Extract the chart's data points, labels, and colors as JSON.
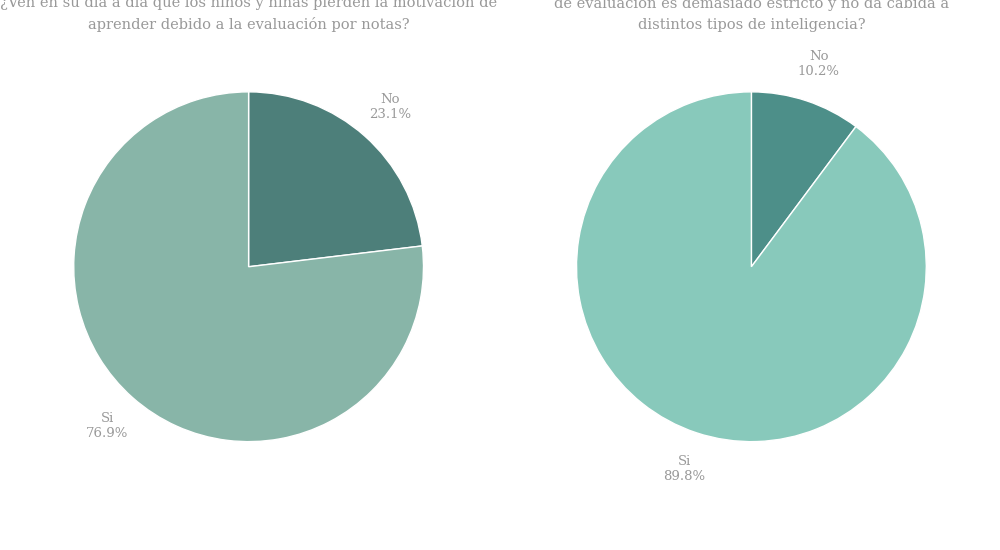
{
  "chart1": {
    "title": "¿Ven en su dia a dia que los niños y niñas pierden la motivación de\naprender debido a la evaluación por notas?",
    "labels": [
      "No",
      "Si"
    ],
    "values": [
      23.1,
      76.9
    ],
    "colors": [
      "#4d7f7a",
      "#88b5a8"
    ],
    "startangle": 90,
    "label_info": [
      {
        "label": "No",
        "pct": "23.1%",
        "ha": "left",
        "r": 1.18
      },
      {
        "label": "Si",
        "pct": "76.9%",
        "ha": "center",
        "r": 1.18
      }
    ]
  },
  "chart2": {
    "title": "¿Está el abandono escolar relacionado con que el sistema\nde evaluación es demasiado estricto y no da cabida a\ndistintos tipos de inteligencia?",
    "labels": [
      "No",
      "Si"
    ],
    "values": [
      10.2,
      89.8
    ],
    "colors": [
      "#4d8f89",
      "#88c9bb"
    ],
    "startangle": 90,
    "label_info": [
      {
        "label": "No",
        "pct": "10.2%",
        "ha": "center",
        "r": 1.18
      },
      {
        "label": "Si",
        "pct": "89.8%",
        "ha": "center",
        "r": 1.18
      }
    ]
  },
  "background_color": "#ffffff",
  "text_color": "#999999",
  "title_fontsize": 10.5,
  "label_fontsize": 9.5
}
